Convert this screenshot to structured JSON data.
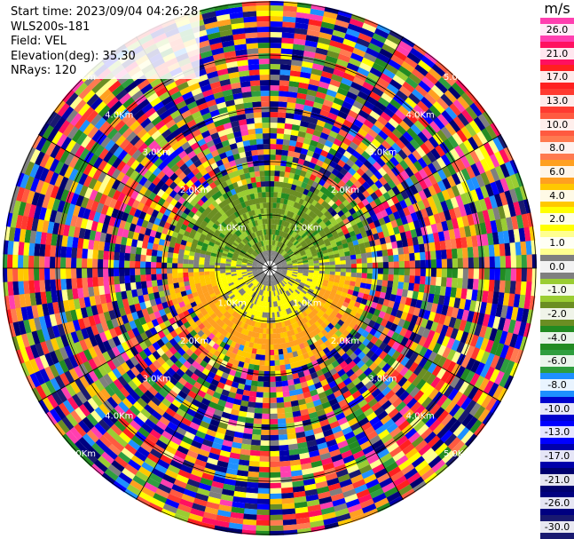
{
  "info": {
    "start_time": "Start time: 2023/09/04 04:26:28",
    "instrument": "WLS200s-181",
    "field": "Field: VEL",
    "elevation": "Elevation(deg): 35.30",
    "nrays": "NRays: 120"
  },
  "colorbar": {
    "unit": "m/s",
    "labels": [
      "26.0",
      "21.0",
      "17.0",
      "13.0",
      "10.0",
      "8.0",
      "6.0",
      "4.0",
      "2.0",
      "1.0",
      "0.0",
      "-1.0",
      "-2.0",
      "-4.0",
      "-6.0",
      "-8.0",
      "-10.0",
      "-13.0",
      "-17.0",
      "-21.0",
      "-26.0",
      "-30.0"
    ],
    "colors": [
      "#ff3fb0",
      "#ff1060",
      "#ff2020",
      "#ff3a30",
      "#ff5a40",
      "#ff7a50",
      "#ffa020",
      "#ffc800",
      "#ffff00",
      "#ffff90",
      "#7f7f7f",
      "#9acd32",
      "#6b8e23",
      "#228b22",
      "#2e9e3e",
      "#1e90ff",
      "#0000cd",
      "#0000ff",
      "#0000aa",
      "#00006e",
      "#000080",
      "#191970"
    ]
  },
  "chart_data": {
    "type": "heatmap",
    "projection": "polar PPI",
    "field": "VEL",
    "units": "m/s",
    "nrays": 120,
    "range_ring_labels": [
      "1.0Km",
      "2.0Km",
      "3.0Km",
      "4.0Km",
      "5.0Km"
    ],
    "noise_note": "beyond ~1 km the velocity field is dominated by random colored gates",
    "coherent_region": {
      "north_sector_ms": "-1 to -4 (green)",
      "south_sector_ms": "2 to 6 (yellow-orange)",
      "near_center_ms": "0 (gray)"
    }
  }
}
